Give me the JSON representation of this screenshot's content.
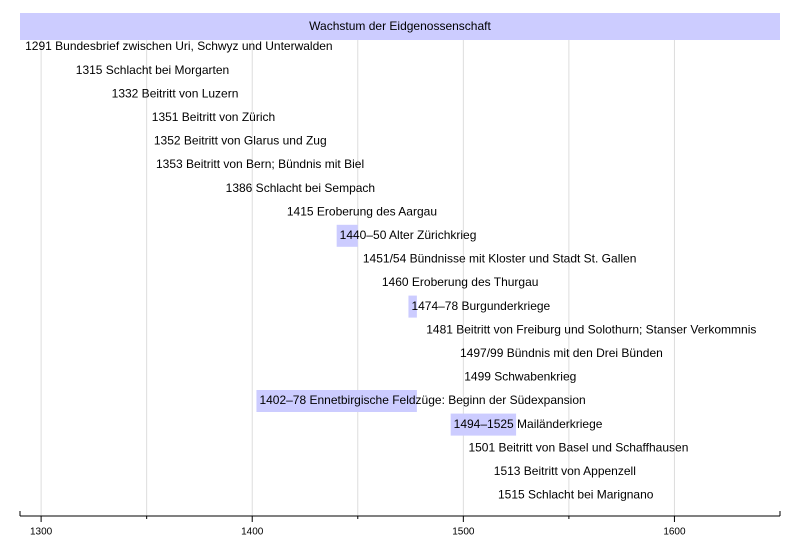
{
  "chart_data": {
    "type": "timeline",
    "title": "Wachstum der Eidgenossenschaft",
    "xlim": [
      1290,
      1650
    ],
    "major_ticks": [
      1300,
      1400,
      1500,
      1600
    ],
    "minor_ticks": [
      1350,
      1450,
      1550
    ],
    "grid": true,
    "colors": {
      "title_bar": "#ccccff",
      "span_bar": "#ccccff",
      "grid": "#dddddd",
      "axis": "#000000"
    },
    "events": [
      {
        "label": "1291 Bundesbrief zwischen Uri, Schwyz und Unterwalden",
        "year": 1291
      },
      {
        "label": "1315 Schlacht bei Morgarten",
        "year": 1315
      },
      {
        "label": "1332 Beitritt von Luzern",
        "year": 1332
      },
      {
        "label": "1351 Beitritt von Zürich",
        "year": 1351
      },
      {
        "label": "1352 Beitritt von Glarus und Zug",
        "year": 1352
      },
      {
        "label": "1353 Beitritt von Bern; Bündnis mit Biel",
        "year": 1353
      },
      {
        "label": "1386 Schlacht bei Sempach",
        "year": 1386
      },
      {
        "label": "1415 Eroberung des Aargau",
        "year": 1415
      },
      {
        "label": "1440–50 Alter Zürichkrieg",
        "year": 1440,
        "end": 1450
      },
      {
        "label": "1451/54 Bündnisse mit Kloster und Stadt St. Gallen",
        "year": 1451
      },
      {
        "label": "1460 Eroberung des Thurgau",
        "year": 1460
      },
      {
        "label": "1474–78 Burgunderkriege",
        "year": 1474,
        "end": 1478
      },
      {
        "label": "1481 Beitritt von Freiburg und Solothurn; Stanser Verkommnis",
        "year": 1481
      },
      {
        "label": "1497/99 Bündnis mit den Drei Bünden",
        "year": 1497
      },
      {
        "label": "1499 Schwabenkrieg",
        "year": 1499
      },
      {
        "label": "1402–78 Ennetbirgische Feldzüge: Beginn der Südexpansion",
        "year": 1402,
        "end": 1478
      },
      {
        "label": "1494–1525 Mailänderkriege",
        "year": 1494,
        "end": 1525
      },
      {
        "label": "1501 Beitritt von Basel und Schaffhausen",
        "year": 1501
      },
      {
        "label": "1513 Beitritt von Appenzell",
        "year": 1513
      },
      {
        "label": "1515 Schlacht bei Marignano",
        "year": 1515
      }
    ]
  }
}
